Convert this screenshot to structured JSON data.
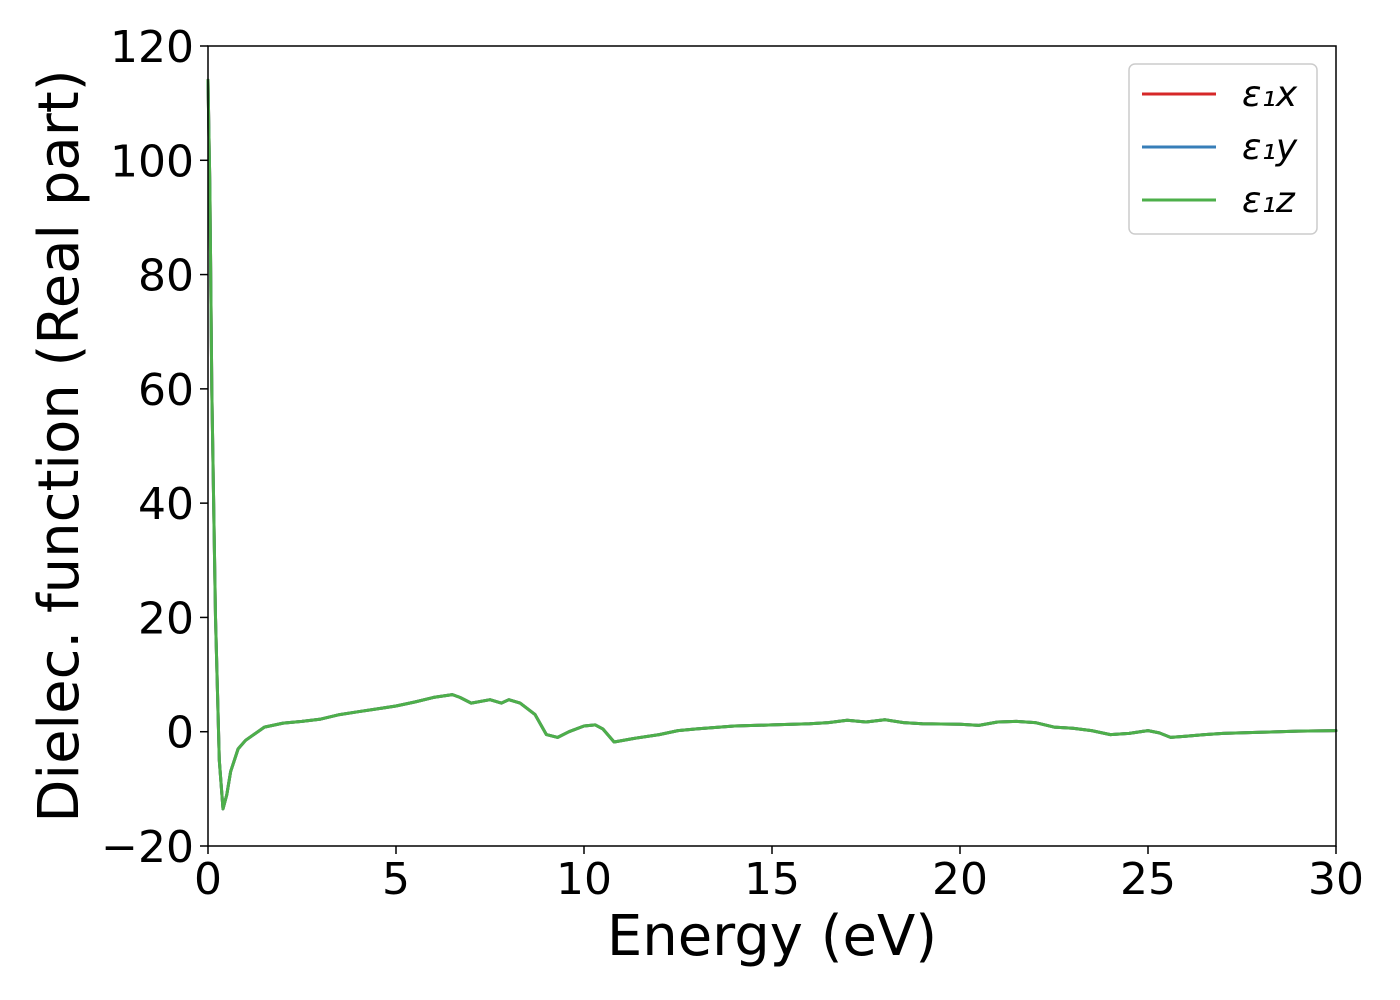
{
  "chart_data": {
    "type": "line",
    "title": "",
    "xlabel": "Energy (eV)",
    "ylabel": "Dielec. function (Real part)",
    "xlim": [
      0,
      30
    ],
    "ylim": [
      -20,
      120
    ],
    "xticks": [
      0,
      5,
      10,
      15,
      20,
      25,
      30
    ],
    "xtick_labels": [
      "0",
      "5",
      "10",
      "15",
      "20",
      "25",
      "30"
    ],
    "yticks": [
      -20,
      0,
      20,
      40,
      60,
      80,
      100,
      120
    ],
    "ytick_labels": [
      "−20",
      "0",
      "20",
      "40",
      "60",
      "80",
      "100",
      "120"
    ],
    "grid": false,
    "legend_position": "top-right",
    "x": [
      0,
      0.05,
      0.1,
      0.2,
      0.3,
      0.4,
      0.5,
      0.6,
      0.8,
      1.0,
      1.5,
      2.0,
      2.5,
      3.0,
      3.5,
      4.0,
      4.5,
      5.0,
      5.5,
      6.0,
      6.5,
      6.7,
      7.0,
      7.5,
      7.8,
      8.0,
      8.3,
      8.7,
      9.0,
      9.3,
      9.6,
      10.0,
      10.3,
      10.5,
      10.8,
      11.3,
      12.0,
      12.5,
      13.0,
      14.0,
      15.0,
      16.0,
      16.5,
      17.0,
      17.5,
      18.0,
      18.5,
      19.0,
      20.0,
      20.5,
      21.0,
      21.5,
      22.0,
      22.5,
      23.0,
      23.5,
      24.0,
      24.5,
      25.0,
      25.3,
      25.6,
      26.0,
      26.5,
      27.0,
      28.0,
      29.0,
      30.0
    ],
    "series": [
      {
        "name": "ε₁x",
        "color": "#d62728",
        "values": [
          114,
          95,
          60,
          20,
          -5,
          -13.5,
          -11,
          -7,
          -3,
          -1.5,
          0.8,
          1.5,
          1.8,
          2.2,
          3.0,
          3.5,
          4.0,
          4.5,
          5.2,
          6.0,
          6.5,
          6.0,
          5.0,
          5.6,
          5.0,
          5.6,
          5.0,
          3.0,
          -0.5,
          -1.0,
          0,
          1.0,
          1.2,
          0.5,
          -1.8,
          -1.2,
          -0.5,
          0.2,
          0.5,
          1.0,
          1.2,
          1.4,
          1.6,
          2.0,
          1.7,
          2.1,
          1.6,
          1.4,
          1.3,
          1.1,
          1.7,
          1.8,
          1.6,
          0.8,
          0.6,
          0.2,
          -0.5,
          -0.3,
          0.2,
          -0.2,
          -1.0,
          -0.8,
          -0.5,
          -0.3,
          -0.1,
          0.1,
          0.2
        ]
      },
      {
        "name": "ε₁y",
        "color": "#377eb8",
        "values": [
          114,
          95,
          60,
          20,
          -5,
          -13.5,
          -11,
          -7,
          -3,
          -1.5,
          0.8,
          1.5,
          1.8,
          2.2,
          3.0,
          3.5,
          4.0,
          4.5,
          5.2,
          6.0,
          6.5,
          6.0,
          5.0,
          5.6,
          5.0,
          5.6,
          5.0,
          3.0,
          -0.5,
          -1.0,
          0,
          1.0,
          1.2,
          0.5,
          -1.8,
          -1.2,
          -0.5,
          0.2,
          0.5,
          1.0,
          1.2,
          1.4,
          1.6,
          2.0,
          1.7,
          2.1,
          1.6,
          1.4,
          1.3,
          1.1,
          1.7,
          1.8,
          1.6,
          0.8,
          0.6,
          0.2,
          -0.5,
          -0.3,
          0.2,
          -0.2,
          -1.0,
          -0.8,
          -0.5,
          -0.3,
          -0.1,
          0.1,
          0.2
        ]
      },
      {
        "name": "ε₁z",
        "color": "#4daf4a",
        "values": [
          114,
          95,
          60,
          20,
          -5,
          -13.5,
          -11,
          -7,
          -3,
          -1.5,
          0.8,
          1.5,
          1.8,
          2.2,
          3.0,
          3.5,
          4.0,
          4.5,
          5.2,
          6.0,
          6.5,
          6.0,
          5.0,
          5.6,
          5.0,
          5.6,
          5.0,
          3.0,
          -0.5,
          -1.0,
          0,
          1.0,
          1.2,
          0.5,
          -1.8,
          -1.2,
          -0.5,
          0.2,
          0.5,
          1.0,
          1.2,
          1.4,
          1.6,
          2.0,
          1.7,
          2.1,
          1.6,
          1.4,
          1.3,
          1.1,
          1.7,
          1.8,
          1.6,
          0.8,
          0.6,
          0.2,
          -0.5,
          -0.3,
          0.2,
          -0.2,
          -1.0,
          -0.8,
          -0.5,
          -0.3,
          -0.1,
          0.1,
          0.2
        ]
      }
    ]
  }
}
